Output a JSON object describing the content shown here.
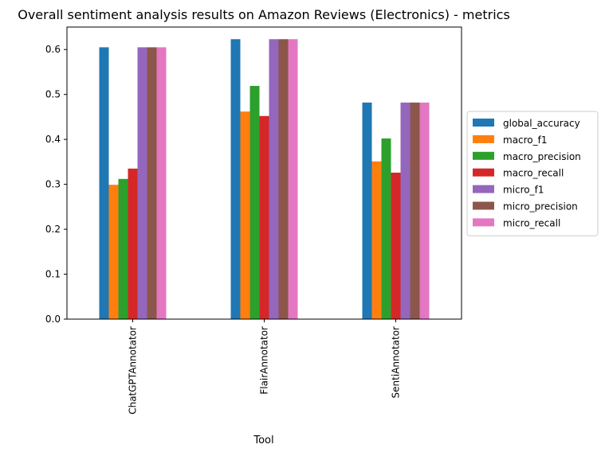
{
  "chart_data": {
    "type": "bar",
    "title": "Overall sentiment analysis results on Amazon Reviews (Electronics) - metrics",
    "xlabel": "Tool",
    "ylabel": "",
    "categories": [
      "ChatGPTAnnotator",
      "FlairAnnotator",
      "SentiAnnotator"
    ],
    "ylim": [
      0,
      0.65
    ],
    "yticks": [
      "0.0",
      "0.1",
      "0.2",
      "0.3",
      "0.4",
      "0.5",
      "0.6"
    ],
    "grid": false,
    "legend_position": "right",
    "series": [
      {
        "name": "global_accuracy",
        "color": "#1f77b4",
        "values": [
          0.605,
          0.623,
          0.482
        ]
      },
      {
        "name": "macro_f1",
        "color": "#ff7f0e",
        "values": [
          0.299,
          0.462,
          0.351
        ]
      },
      {
        "name": "macro_precision",
        "color": "#2ca02c",
        "values": [
          0.312,
          0.519,
          0.402
        ]
      },
      {
        "name": "macro_recall",
        "color": "#d62728",
        "values": [
          0.335,
          0.452,
          0.326
        ]
      },
      {
        "name": "micro_f1",
        "color": "#9467bd",
        "values": [
          0.605,
          0.623,
          0.482
        ]
      },
      {
        "name": "micro_precision",
        "color": "#8c564b",
        "values": [
          0.605,
          0.623,
          0.482
        ]
      },
      {
        "name": "micro_recall",
        "color": "#e377c2",
        "values": [
          0.605,
          0.623,
          0.482
        ]
      }
    ]
  }
}
